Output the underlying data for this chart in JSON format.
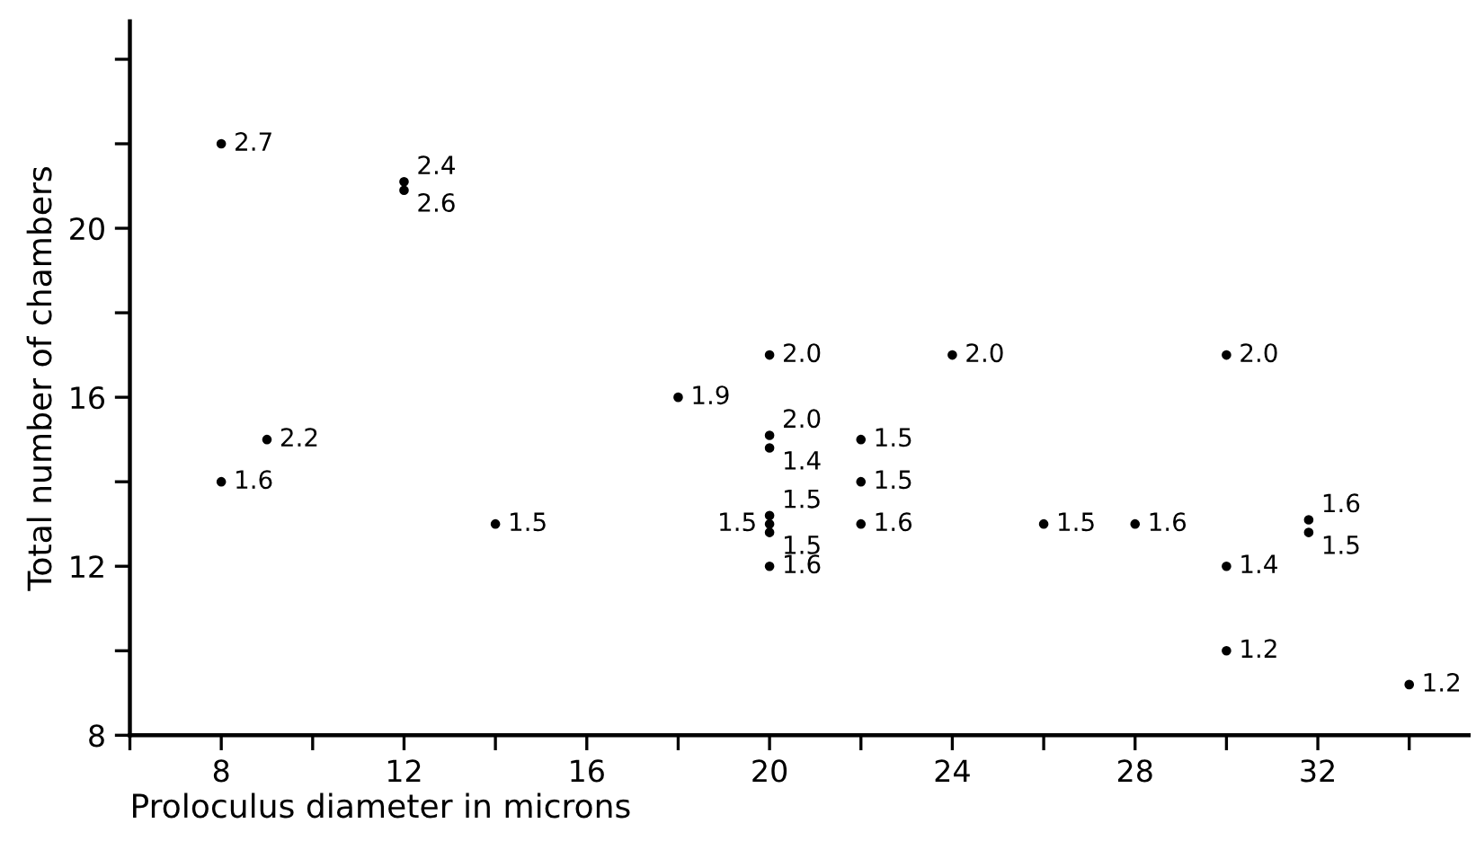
{
  "chart_data": {
    "type": "scatter",
    "xlabel": "Proloculus diameter in microns",
    "ylabel": "Total number of chambers",
    "x": [
      8,
      12,
      12,
      9,
      8,
      14,
      18,
      20,
      20,
      20,
      20,
      20,
      20,
      20,
      22,
      22,
      22,
      24,
      26,
      28,
      30,
      30,
      30,
      31.8,
      31.8,
      34
    ],
    "series": [
      {
        "color": "#000000",
        "values": [
          22,
          21.1,
          20.9,
          15,
          14,
          13,
          16,
          17,
          15.1,
          14.8,
          13.2,
          13.0,
          12.8,
          12,
          15,
          14,
          13,
          17,
          13,
          13,
          17,
          12,
          10,
          13.1,
          12.8,
          9.2
        ]
      }
    ],
    "marker": "circle",
    "grid": false,
    "xlim": [
      6,
      35.3
    ],
    "ylim": [
      8,
      24.9
    ],
    "xticks": [
      {
        "value": 6,
        "label": null
      },
      8,
      {
        "value": 10,
        "label": null
      },
      12,
      {
        "value": 14,
        "label": null
      },
      16,
      {
        "value": 18,
        "label": null
      },
      20,
      {
        "value": 22,
        "label": null
      },
      24,
      {
        "value": 26,
        "label": null
      },
      28,
      {
        "value": 30,
        "label": null
      },
      32,
      {
        "value": 34,
        "label": null
      }
    ],
    "yticks": [
      8,
      {
        "value": 10,
        "label": null
      },
      12,
      {
        "value": 14,
        "label": null
      },
      16,
      {
        "value": 18,
        "label": null
      },
      20,
      {
        "value": 22,
        "label": null
      },
      {
        "value": 24,
        "label": null
      }
    ],
    "annotations": [
      {
        "text": "2.7",
        "x": 8,
        "y": 22
      },
      {
        "text": "2.4",
        "x": 12,
        "y": 21.1
      },
      {
        "text": "2.6",
        "x": 12,
        "y": 20.9
      },
      {
        "text": "2.2",
        "x": 9,
        "y": 15
      },
      {
        "text": "1.6",
        "x": 8,
        "y": 14
      },
      {
        "text": "1.5",
        "x": 14,
        "y": 13
      },
      {
        "text": "1.9",
        "x": 18,
        "y": 16
      },
      {
        "text": "2.0",
        "x": 20,
        "y": 17
      },
      {
        "text": "2.0",
        "x": 20,
        "y": 15.1
      },
      {
        "text": "1.4",
        "x": 20,
        "y": 14.8
      },
      {
        "text": "1.5",
        "x": 20,
        "y": 13.2
      },
      {
        "text": "1.5",
        "x": 20,
        "y": 13.0
      },
      {
        "text": "1.5",
        "x": 20,
        "y": 12.8
      },
      {
        "text": "1.6",
        "x": 20,
        "y": 12
      },
      {
        "text": "1.5",
        "x": 22,
        "y": 15
      },
      {
        "text": "1.5",
        "x": 22,
        "y": 14
      },
      {
        "text": "1.6",
        "x": 22,
        "y": 13
      },
      {
        "text": "2.0",
        "x": 24,
        "y": 17
      },
      {
        "text": "1.5",
        "x": 26,
        "y": 13
      },
      {
        "text": "1.6",
        "x": 28,
        "y": 13
      },
      {
        "text": "2.0",
        "x": 30,
        "y": 17
      },
      {
        "text": "1.4",
        "x": 30,
        "y": 12
      },
      {
        "text": "1.2",
        "x": 30,
        "y": 10
      },
      {
        "text": "1.6",
        "x": 31.8,
        "y": 13.1
      },
      {
        "text": "1.5",
        "x": 31.8,
        "y": 12.8
      },
      {
        "text": "1.2",
        "x": 34,
        "y": 9.2
      }
    ]
  }
}
